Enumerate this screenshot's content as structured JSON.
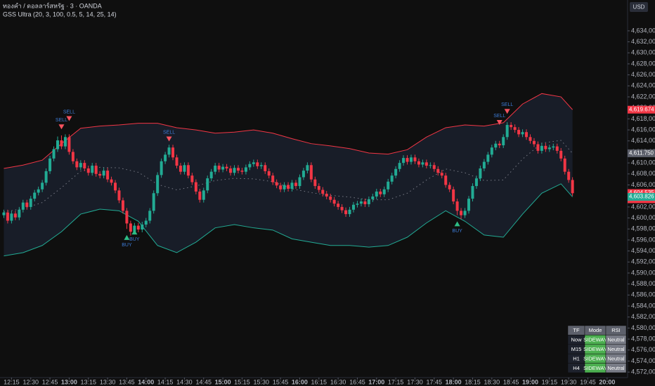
{
  "chart_data": {
    "type": "candlestick",
    "title": "ทองคำ / ดอลลาร์สหรัฐ · 3 · OANDA",
    "subtitle": "GSS Ultra (20, 3, 100, 0.5, 5, 14, 25, 14)",
    "currency": "USD",
    "up_color": "#22ab94",
    "down_color": "#f23645",
    "x": [
      "12:09",
      "12:12",
      "12:15",
      "12:18",
      "12:21",
      "12:24",
      "12:27",
      "12:30",
      "12:33",
      "12:36",
      "12:39",
      "12:42",
      "12:45",
      "12:48",
      "12:51",
      "12:54",
      "12:57",
      "13:00",
      "13:03",
      "13:06",
      "13:09",
      "13:12",
      "13:15",
      "13:18",
      "13:21",
      "13:24",
      "13:27",
      "13:30",
      "13:33",
      "13:36",
      "13:39",
      "13:42",
      "13:45",
      "13:48",
      "13:51",
      "13:54",
      "13:57",
      "14:00",
      "14:03",
      "14:06",
      "14:09",
      "14:12",
      "14:15",
      "14:18",
      "14:21",
      "14:24",
      "14:27",
      "14:30",
      "14:33",
      "14:36",
      "14:39",
      "14:42",
      "14:45",
      "14:48",
      "14:51",
      "14:54",
      "14:57",
      "15:00",
      "15:03",
      "15:06",
      "15:09",
      "15:12",
      "15:15",
      "15:18",
      "15:21",
      "15:24",
      "15:27",
      "15:30",
      "15:33",
      "15:36",
      "15:39",
      "15:42",
      "15:45",
      "15:48",
      "15:51",
      "15:54",
      "15:57",
      "16:00",
      "16:03",
      "16:06",
      "16:09",
      "16:12",
      "16:15",
      "16:18",
      "16:21",
      "16:24",
      "16:27",
      "16:30",
      "16:33",
      "16:36",
      "16:39",
      "16:42",
      "16:45",
      "16:48",
      "16:51",
      "16:54",
      "16:57",
      "17:00",
      "17:03",
      "17:06",
      "17:09",
      "17:12",
      "17:15",
      "17:18",
      "17:21",
      "17:24",
      "17:27",
      "17:30",
      "17:33",
      "17:36",
      "17:39",
      "17:42",
      "17:45",
      "17:48",
      "17:51",
      "17:54",
      "17:57",
      "18:00",
      "18:03",
      "18:06",
      "18:09",
      "18:12",
      "18:15",
      "18:18",
      "18:21",
      "18:24",
      "18:27",
      "18:30",
      "18:33",
      "18:36",
      "18:39",
      "18:42",
      "18:45",
      "18:48",
      "18:51",
      "18:54",
      "18:57",
      "19:00",
      "19:03",
      "19:06",
      "19:09",
      "19:12",
      "19:15",
      "19:18",
      "19:21",
      "19:24",
      "19:27",
      "19:30",
      "19:33"
    ],
    "open": [
      4600.5,
      4601.0,
      4599.5,
      4600.8,
      4600.1,
      4601.5,
      4602.8,
      4602.0,
      4603.5,
      4604.6,
      4605.2,
      4606.4,
      4608.5,
      4610.8,
      4612.5,
      4614.1,
      4613.0,
      4614.7,
      4612.0,
      4610.3,
      4609.2,
      4610.0,
      4609.0,
      4608.2,
      4609.5,
      4608.0,
      4607.7,
      4608.6,
      4607.0,
      4606.4,
      4605.0,
      4603.2,
      4601.3,
      4599.0,
      4597.5,
      4598.6,
      4597.9,
      4598.8,
      4599.5,
      4601.3,
      4604.5,
      4607.8,
      4610.3,
      4611.5,
      4612.8,
      4611.0,
      4609.5,
      4608.4,
      4609.6,
      4607.7,
      4606.5,
      4604.8,
      4603.3,
      4605.0,
      4607.2,
      4608.4,
      4609.5,
      4608.8,
      4609.3,
      4609.0,
      4608.2,
      4609.1,
      4608.6,
      4608.4,
      4609.2,
      4609.8,
      4610.1,
      4609.4,
      4609.6,
      4608.5,
      4607.7,
      4606.5,
      4605.9,
      4605.2,
      4606.0,
      4605.3,
      4606.4,
      4605.8,
      4607.4,
      4608.6,
      4609.6,
      4607.0,
      4605.8,
      4605.1,
      4604.4,
      4603.9,
      4603.3,
      4602.6,
      4602.0,
      4601.4,
      4600.7,
      4601.5,
      4602.4,
      4602.6,
      4603.0,
      4602.5,
      4603.4,
      4603.9,
      4604.8,
      4604.3,
      4605.2,
      4606.6,
      4607.7,
      4608.9,
      4610.0,
      4610.9,
      4610.2,
      4611.0,
      4610.3,
      4609.7,
      4610.1,
      4609.5,
      4609.6,
      4608.9,
      4608.2,
      4607.7,
      4606.0,
      4605.2,
      4603.0,
      4601.3,
      4600.5,
      4601.3,
      4603.5,
      4605.8,
      4607.2,
      4609.0,
      4610.2,
      4611.5,
      4612.8,
      4613.5,
      4613.2,
      4614.7,
      4616.9,
      4616.5,
      4616.0,
      4615.2,
      4615.6,
      4614.7,
      4614.0,
      4613.4,
      4612.2,
      4613.1,
      4612.5,
      4612.8,
      4613.0,
      4612.2,
      4610.8,
      4608.4,
      4606.9
    ],
    "high": [
      4601.5,
      4601.5,
      4601.3,
      4601.3,
      4602.0,
      4603.3,
      4603.3,
      4604.0,
      4605.1,
      4605.7,
      4606.9,
      4609.0,
      4611.3,
      4613.0,
      4614.8,
      4615.0,
      4615.2,
      4615.2,
      4612.5,
      4610.8,
      4610.5,
      4610.5,
      4609.5,
      4610.0,
      4610.0,
      4608.5,
      4609.1,
      4609.1,
      4607.5,
      4606.9,
      4605.5,
      4603.7,
      4601.8,
      4599.5,
      4599.1,
      4599.1,
      4599.3,
      4600.0,
      4601.8,
      4605.0,
      4608.3,
      4610.8,
      4612.0,
      4613.3,
      4613.3,
      4611.5,
      4610.0,
      4610.1,
      4610.1,
      4608.2,
      4607.0,
      4605.3,
      4605.5,
      4607.7,
      4608.9,
      4610.0,
      4610.0,
      4609.8,
      4609.8,
      4609.5,
      4609.6,
      4609.6,
      4609.1,
      4609.7,
      4610.3,
      4610.6,
      4610.6,
      4610.1,
      4610.1,
      4609.0,
      4608.2,
      4607.0,
      4606.4,
      4606.5,
      4606.5,
      4606.9,
      4606.9,
      4607.9,
      4609.1,
      4610.1,
      4610.1,
      4607.5,
      4606.3,
      4605.6,
      4604.9,
      4604.4,
      4603.8,
      4603.1,
      4602.5,
      4601.9,
      4602.0,
      4602.9,
      4603.1,
      4603.5,
      4603.5,
      4603.9,
      4604.4,
      4605.3,
      4605.3,
      4605.7,
      4607.1,
      4608.2,
      4609.4,
      4610.5,
      4611.4,
      4611.4,
      4611.5,
      4611.5,
      4610.8,
      4610.6,
      4610.6,
      4610.1,
      4610.1,
      4609.4,
      4608.7,
      4608.2,
      4606.5,
      4605.7,
      4603.5,
      4601.8,
      4601.8,
      4604.0,
      4606.3,
      4607.7,
      4609.5,
      4610.7,
      4612.0,
      4613.3,
      4614.0,
      4614.0,
      4615.2,
      4617.4,
      4617.4,
      4617.0,
      4616.5,
      4616.1,
      4616.1,
      4615.2,
      4614.5,
      4613.9,
      4613.6,
      4613.6,
      4613.3,
      4613.5,
      4613.5,
      4612.7,
      4611.3,
      4608.9,
      4607.4
    ],
    "low": [
      4600.0,
      4599.0,
      4599.0,
      4599.6,
      4599.6,
      4601.0,
      4601.5,
      4601.5,
      4603.0,
      4604.1,
      4604.7,
      4605.9,
      4608.0,
      4610.3,
      4612.0,
      4612.5,
      4612.5,
      4611.5,
      4609.8,
      4608.7,
      4608.7,
      4608.5,
      4607.7,
      4607.7,
      4607.5,
      4607.2,
      4607.2,
      4606.5,
      4605.9,
      4604.5,
      4602.7,
      4600.8,
      4598.0,
      4596.8,
      4597.0,
      4597.4,
      4597.4,
      4598.3,
      4599.0,
      4600.8,
      4604.0,
      4607.3,
      4609.8,
      4611.0,
      4610.5,
      4609.0,
      4607.9,
      4607.9,
      4607.2,
      4606.0,
      4604.3,
      4602.8,
      4602.8,
      4604.5,
      4606.7,
      4607.9,
      4608.3,
      4608.3,
      4608.5,
      4607.7,
      4607.7,
      4608.1,
      4607.9,
      4607.9,
      4608.7,
      4609.3,
      4608.9,
      4608.9,
      4608.0,
      4607.2,
      4606.0,
      4605.4,
      4604.7,
      4604.7,
      4604.8,
      4604.8,
      4605.3,
      4605.3,
      4606.9,
      4608.1,
      4606.5,
      4605.3,
      4604.6,
      4603.9,
      4603.4,
      4602.8,
      4602.1,
      4601.5,
      4600.9,
      4600.2,
      4600.2,
      4601.0,
      4601.9,
      4602.1,
      4602.0,
      4602.0,
      4602.9,
      4603.4,
      4603.8,
      4603.8,
      4604.7,
      4606.1,
      4607.2,
      4608.4,
      4609.5,
      4609.7,
      4609.7,
      4609.8,
      4609.2,
      4609.2,
      4609.0,
      4609.0,
      4608.4,
      4607.7,
      4607.2,
      4605.5,
      4604.7,
      4602.5,
      4600.5,
      4599.8,
      4600.0,
      4600.8,
      4603.0,
      4605.3,
      4606.7,
      4608.5,
      4609.7,
      4611.0,
      4612.3,
      4612.7,
      4612.7,
      4614.2,
      4616.0,
      4615.5,
      4614.7,
      4614.7,
      4614.2,
      4613.5,
      4612.9,
      4611.7,
      4611.7,
      4612.0,
      4612.0,
      4612.3,
      4611.7,
      4610.3,
      4607.9,
      4606.4,
      4604.0
    ],
    "close": [
      4601.0,
      4599.5,
      4600.8,
      4600.1,
      4601.5,
      4602.8,
      4602.0,
      4603.5,
      4604.6,
      4605.2,
      4606.4,
      4608.5,
      4610.8,
      4612.5,
      4614.1,
      4613.0,
      4614.7,
      4612.0,
      4610.3,
      4609.2,
      4610.0,
      4609.0,
      4608.2,
      4609.5,
      4608.0,
      4607.7,
      4608.6,
      4607.0,
      4606.4,
      4605.0,
      4603.2,
      4601.3,
      4599.0,
      4597.5,
      4598.6,
      4597.9,
      4598.8,
      4599.5,
      4601.3,
      4604.5,
      4607.8,
      4610.3,
      4611.5,
      4612.8,
      4611.0,
      4609.5,
      4608.4,
      4609.6,
      4607.7,
      4606.5,
      4604.8,
      4603.3,
      4605.0,
      4607.2,
      4608.4,
      4609.5,
      4608.8,
      4609.3,
      4609.0,
      4608.2,
      4609.1,
      4608.6,
      4608.4,
      4609.2,
      4609.8,
      4610.1,
      4609.4,
      4609.6,
      4608.5,
      4607.7,
      4606.5,
      4605.9,
      4605.2,
      4606.0,
      4605.3,
      4606.4,
      4605.8,
      4607.4,
      4608.6,
      4609.6,
      4607.0,
      4605.8,
      4605.1,
      4604.4,
      4603.9,
      4603.3,
      4602.6,
      4602.0,
      4601.4,
      4600.7,
      4601.5,
      4602.4,
      4602.6,
      4603.0,
      4602.5,
      4603.4,
      4603.9,
      4604.8,
      4604.3,
      4605.2,
      4606.6,
      4607.7,
      4608.9,
      4610.0,
      4610.9,
      4610.2,
      4611.0,
      4610.3,
      4609.7,
      4610.1,
      4609.5,
      4609.6,
      4608.9,
      4608.2,
      4607.7,
      4606.0,
      4605.2,
      4603.0,
      4601.3,
      4600.5,
      4601.3,
      4603.5,
      4605.8,
      4607.2,
      4609.0,
      4610.2,
      4611.5,
      4612.8,
      4613.5,
      4613.2,
      4614.7,
      4616.9,
      4616.5,
      4616.0,
      4615.2,
      4615.6,
      4614.7,
      4614.0,
      4613.4,
      4612.2,
      4613.1,
      4612.5,
      4612.8,
      4613.0,
      4612.2,
      4610.8,
      4608.4,
      4606.9,
      4604.5
    ],
    "bands": {
      "x": [
        "12:09",
        "12:24",
        "12:39",
        "12:54",
        "13:09",
        "13:24",
        "13:39",
        "13:54",
        "14:09",
        "14:24",
        "14:39",
        "14:54",
        "15:09",
        "15:24",
        "15:39",
        "15:54",
        "16:09",
        "16:24",
        "16:39",
        "16:54",
        "17:09",
        "17:24",
        "17:39",
        "17:54",
        "18:09",
        "18:24",
        "18:39",
        "18:54",
        "19:09",
        "19:24",
        "19:33"
      ],
      "upper": [
        4609.0,
        4609.6,
        4610.5,
        4613.5,
        4616.3,
        4616.7,
        4616.9,
        4617.2,
        4617.2,
        4616.4,
        4616.0,
        4615.4,
        4615.6,
        4616.0,
        4615.4,
        4614.4,
        4613.5,
        4613.1,
        4612.6,
        4611.8,
        4611.6,
        4612.4,
        4614.7,
        4616.4,
        4616.9,
        4616.7,
        4617.3,
        4620.7,
        4622.6,
        4622.0,
        4619.674
      ],
      "basis": [
        4601.1,
        4601.7,
        4602.8,
        4605.5,
        4608.5,
        4609.2,
        4609.1,
        4608.3,
        4606.1,
        4605.1,
        4605.8,
        4606.8,
        4607.2,
        4607.1,
        4606.6,
        4605.3,
        4604.6,
        4604.1,
        4603.8,
        4603.3,
        4603.3,
        4604.5,
        4606.9,
        4608.9,
        4608.2,
        4606.8,
        4606.9,
        4610.7,
        4613.6,
        4614.1,
        4611.75
      ],
      "lower": [
        4593.1,
        4593.7,
        4595.0,
        4597.5,
        4600.7,
        4601.6,
        4601.3,
        4599.4,
        4595.0,
        4593.7,
        4595.6,
        4598.2,
        4598.8,
        4598.2,
        4597.8,
        4596.2,
        4595.6,
        4595.0,
        4595.0,
        4594.7,
        4595.0,
        4596.5,
        4599.1,
        4601.3,
        4599.4,
        4596.9,
        4596.5,
        4600.7,
        4604.5,
        4606.2,
        4603.826
      ],
      "upper_color": "#f23645",
      "lower_color": "#22ab94",
      "basis_color": "#787b86",
      "fill": "#1c2333"
    },
    "signals": [
      {
        "label": "SELL",
        "x": "12:54",
        "price": 4617.0,
        "color": "#f7525f"
      },
      {
        "label": "SELL",
        "x": "13:00",
        "price": 4618.5,
        "color": "#f7525f"
      },
      {
        "label": "SELL",
        "x": "14:18",
        "price": 4614.8,
        "color": "#f7525f"
      },
      {
        "label": "SELL",
        "x": "18:36",
        "price": 4617.8,
        "color": "#f7525f"
      },
      {
        "label": "SELL",
        "x": "18:42",
        "price": 4619.8,
        "color": "#f7525f"
      },
      {
        "label": "BUY",
        "x": "13:45",
        "price": 4596.0,
        "color": "#2ebd85"
      },
      {
        "label": "BUY",
        "x": "13:51",
        "price": 4597.0,
        "color": "#2ebd85"
      },
      {
        "label": "BUY",
        "x": "18:03",
        "price": 4598.5,
        "color": "#2ebd85"
      }
    ],
    "price_labels": [
      {
        "value": 4619.674,
        "label": "4,619.674",
        "color": "#f23645"
      },
      {
        "value": 4611.75,
        "label": "4,611.750",
        "color": "#5d606b"
      },
      {
        "value": 4604.535,
        "label": "4,604.535",
        "color": "#f23645",
        "countdown": "00:12"
      },
      {
        "value": 4603.826,
        "label": "4,603.826",
        "color": "#22ab94"
      }
    ],
    "xlim": [
      "12:06",
      "20:16"
    ],
    "xticks": [
      "12:15",
      "12:30",
      "12:45",
      "13:00",
      "13:15",
      "13:30",
      "13:45",
      "14:00",
      "14:15",
      "14:30",
      "14:45",
      "15:00",
      "15:15",
      "15:30",
      "15:45",
      "16:00",
      "16:15",
      "16:30",
      "16:45",
      "17:00",
      "17:15",
      "17:30",
      "17:45",
      "18:00",
      "18:15",
      "18:30",
      "18:45",
      "19:00",
      "19:15",
      "19:30",
      "19:45",
      "20:00"
    ],
    "ylim": [
      4571.0,
      4639.6
    ],
    "yticks": [
      {
        "value": 4572,
        "label": "4,572,000"
      },
      {
        "value": 4574,
        "label": "4,574,000"
      },
      {
        "value": 4576,
        "label": "4,576,000"
      },
      {
        "value": 4578,
        "label": "4,578,000"
      },
      {
        "value": 4580,
        "label": "4,580,000"
      },
      {
        "value": 4582,
        "label": "4,582,000"
      },
      {
        "value": 4584,
        "label": "4,584,000"
      },
      {
        "value": 4586,
        "label": "4,586,000"
      },
      {
        "value": 4588,
        "label": "4,588,000"
      },
      {
        "value": 4590,
        "label": "4,590,000"
      },
      {
        "value": 4592,
        "label": "4,592,000"
      },
      {
        "value": 4594,
        "label": "4,594,000"
      },
      {
        "value": 4596,
        "label": "4,596,000"
      },
      {
        "value": 4598,
        "label": "4,598,000"
      },
      {
        "value": 4600,
        "label": "4,600,000"
      },
      {
        "value": 4602,
        "label": "4,602,000"
      },
      {
        "value": 4604,
        "label": "4,604,000"
      },
      {
        "value": 4606,
        "label": "4,606,000"
      },
      {
        "value": 4608,
        "label": "4,608,000"
      },
      {
        "value": 4610,
        "label": "4,610,000"
      },
      {
        "value": 4612,
        "label": "4,612,000"
      },
      {
        "value": 4614,
        "label": "4,614,000"
      },
      {
        "value": 4616,
        "label": "4,616,000"
      },
      {
        "value": 4618,
        "label": "4,618,000"
      },
      {
        "value": 4620,
        "label": "4,620,000"
      },
      {
        "value": 4622,
        "label": "4,622,000"
      },
      {
        "value": 4624,
        "label": "4,624,000"
      },
      {
        "value": 4626,
        "label": "4,626,000"
      },
      {
        "value": 4628,
        "label": "4,628,000"
      },
      {
        "value": 4630,
        "label": "4,630,000"
      },
      {
        "value": 4632,
        "label": "4,632,000"
      },
      {
        "value": 4634,
        "label": "4,634,000"
      }
    ],
    "grid": false,
    "table": {
      "header": [
        "TF",
        "Mode",
        "RSI"
      ],
      "rows": [
        [
          "Now",
          "SIDEWAY",
          "Neutral"
        ],
        [
          "M15",
          "SIDEWAY",
          "Neutral"
        ],
        [
          "H1",
          "SIDEWAY",
          "Neutral"
        ],
        [
          "H4",
          "SIDEWAY",
          "Neutral"
        ]
      ]
    }
  }
}
